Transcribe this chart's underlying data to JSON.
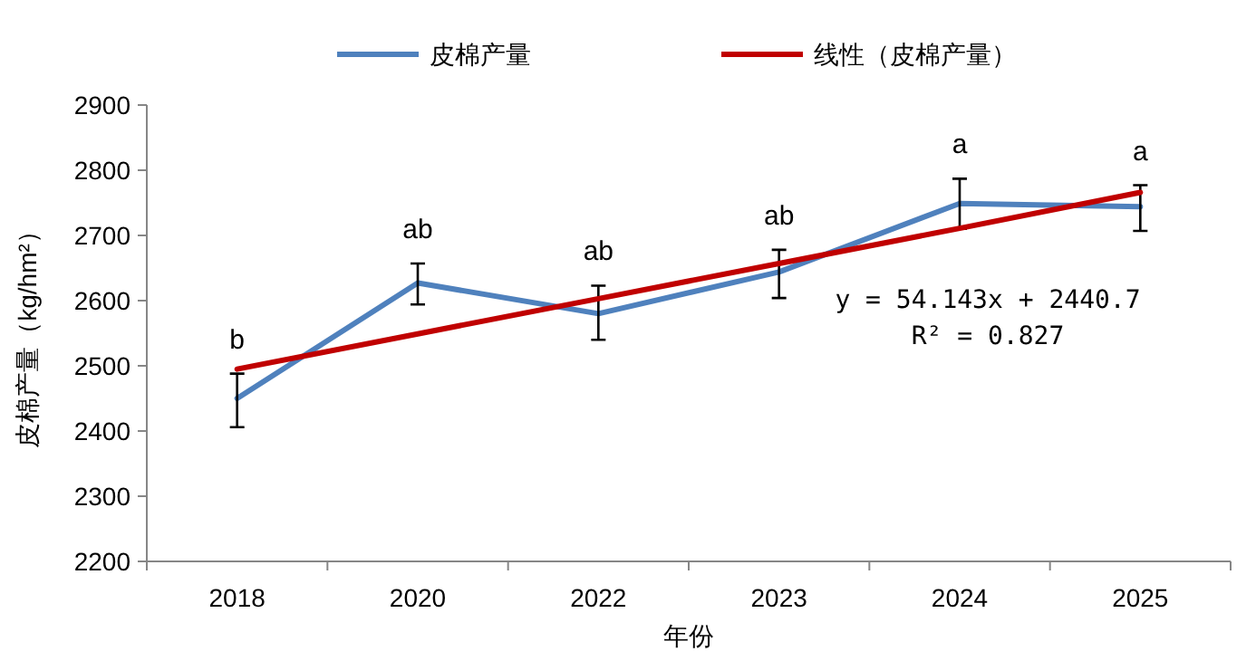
{
  "chart_data": {
    "type": "line",
    "xlabel": "年份",
    "ylabel": "皮棉产量（kg/hm²）",
    "categories": [
      "2018",
      "2020",
      "2022",
      "2023",
      "2024",
      "2025"
    ],
    "series": [
      {
        "name": "皮棉产量",
        "color": "#4f81bd",
        "values": [
          2450,
          2627,
          2580,
          2644,
          2749,
          2744
        ],
        "errors": [
          [
            2406,
            2488
          ],
          [
            2594,
            2657
          ],
          [
            2540,
            2623
          ],
          [
            2604,
            2678
          ],
          [
            2710,
            2787
          ],
          [
            2707,
            2777
          ]
        ]
      },
      {
        "name": "线性（皮棉产量）",
        "color": "#c00000",
        "values": [
          2495,
          2549,
          2603,
          2657,
          2711,
          2766
        ]
      }
    ],
    "ylim": [
      2200,
      2900
    ],
    "yticks": [
      2200,
      2300,
      2400,
      2500,
      2600,
      2700,
      2800,
      2900
    ],
    "grid": false,
    "legend": "top",
    "marker": "none",
    "line_style": "solid",
    "annotations": [
      "b",
      "ab",
      "ab",
      "ab",
      "a",
      "a",
      "y = 54.143x + 2440.7",
      "R² = 0.827"
    ]
  }
}
